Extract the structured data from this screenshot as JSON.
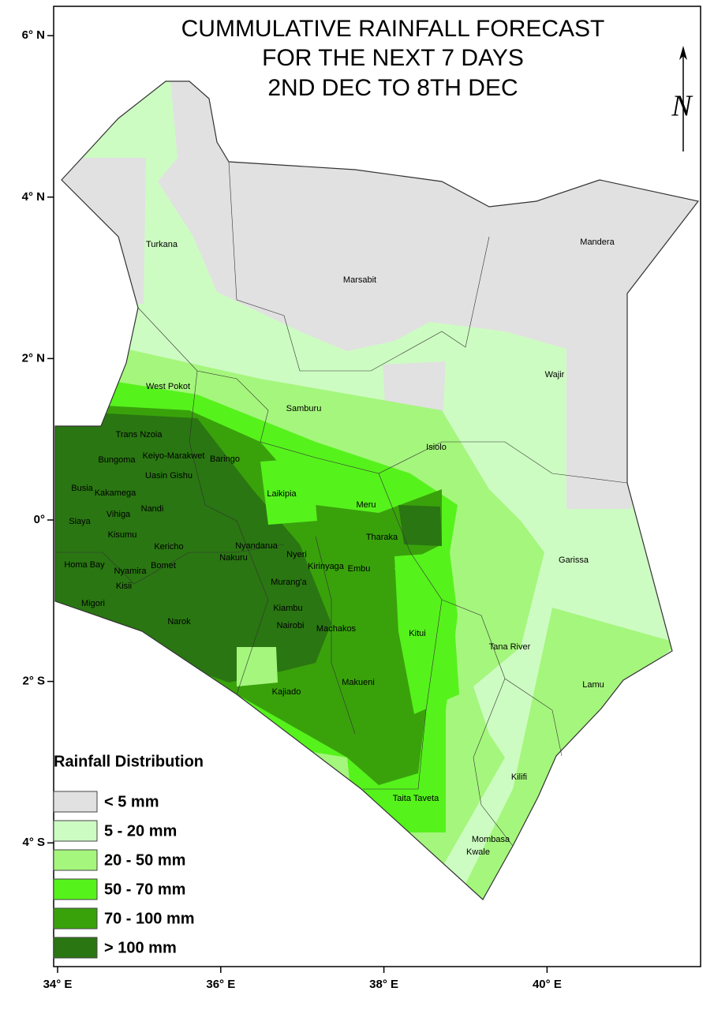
{
  "title": [
    "CUMMULATIVE RAINFALL FORECAST",
    "FOR THE NEXT 7 DAYS",
    "2ND DEC TO 8TH DEC"
  ],
  "north_label": "N",
  "lat_ticks": [
    {
      "value": 6,
      "label": "6° N"
    },
    {
      "value": 4,
      "label": "4° N"
    },
    {
      "value": 2,
      "label": "2° N"
    },
    {
      "value": 0,
      "label": "0°"
    },
    {
      "value": -2,
      "label": "2° S"
    },
    {
      "value": -4,
      "label": "4° S"
    }
  ],
  "lon_ticks": [
    {
      "value": 34,
      "label": "34° E"
    },
    {
      "value": 36,
      "label": "36° E"
    },
    {
      "value": 38,
      "label": "38° E"
    },
    {
      "value": 40,
      "label": "40° E"
    }
  ],
  "counties": [
    "Turkana",
    "Marsabit",
    "Mandera",
    "Wajir",
    "West Pokot",
    "Samburu",
    "Isiolo",
    "Trans Nzoia",
    "Bungoma",
    "Keiyo-Marakwet",
    "Baringo",
    "Uasin Gishu",
    "Busia",
    "Kakamega",
    "Laikipia",
    "Meru",
    "Nandi",
    "Vihiga",
    "Siaya",
    "Tharaka",
    "Kisumu",
    "Nyandarua",
    "Kericho",
    "Garissa",
    "Nyeri",
    "Kirinyaga",
    "Embu",
    "Homa Bay",
    "Bomet",
    "Nakuru",
    "Nyamira",
    "Murang'a",
    "Kisii",
    "Migori",
    "Kiambu",
    "Narok",
    "Nairobi",
    "Machakos",
    "Kitui",
    "Tana River",
    "Kajiado",
    "Makueni",
    "Lamu",
    "Kilifi",
    "Taita Taveta",
    "Mombasa",
    "Kwale"
  ],
  "legend": {
    "title": "Rainfall Distribution",
    "items": [
      {
        "label": "< 5 mm",
        "color": "#e1e1e1"
      },
      {
        "label": "5 - 20 mm",
        "color": "#cdfcc2"
      },
      {
        "label": "20 - 50 mm",
        "color": "#a5f67d"
      },
      {
        "label": "50 - 70 mm",
        "color": "#56f21c"
      },
      {
        "label": "70 - 100 mm",
        "color": "#39a20b"
      },
      {
        "label": "> 100 mm",
        "color": "#2a7612"
      }
    ]
  }
}
